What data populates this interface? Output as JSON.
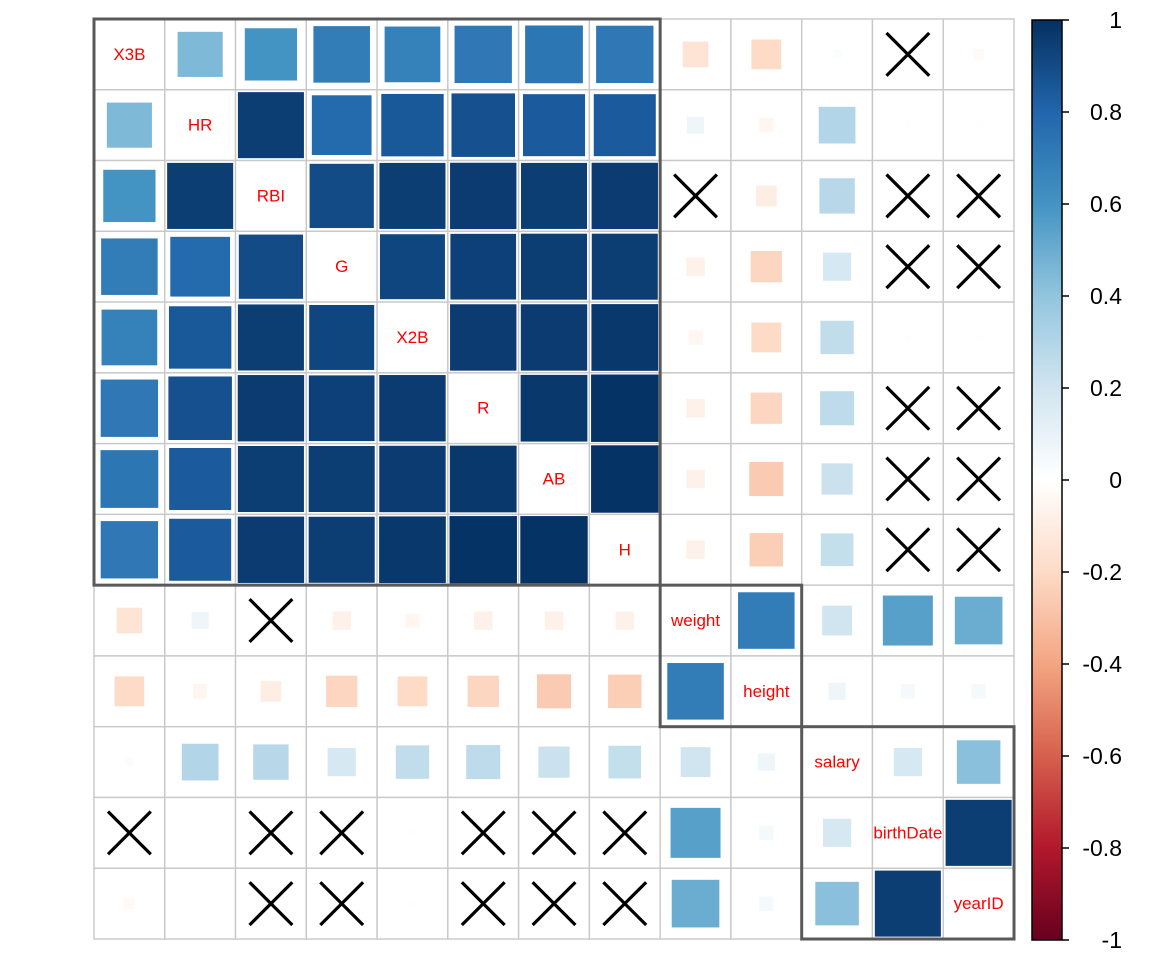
{
  "chart_data": {
    "type": "heatmap",
    "title": "",
    "variables": [
      "X3B",
      "HR",
      "RBI",
      "G",
      "X2B",
      "R",
      "AB",
      "H",
      "weight",
      "height",
      "salary",
      "birthDate",
      "yearID"
    ],
    "matrix": [
      [
        1.0,
        0.45,
        0.6,
        0.7,
        0.68,
        0.72,
        0.73,
        0.72,
        -0.15,
        -0.2,
        0.02,
        null,
        -0.03
      ],
      [
        0.45,
        1.0,
        0.95,
        0.78,
        0.85,
        0.88,
        0.84,
        0.84,
        0.07,
        -0.05,
        0.3,
        0.01,
        0.01
      ],
      [
        0.6,
        0.95,
        1.0,
        0.9,
        0.95,
        0.96,
        0.95,
        0.96,
        null,
        -0.1,
        0.28,
        null,
        null
      ],
      [
        0.7,
        0.78,
        0.9,
        1.0,
        0.92,
        0.94,
        0.95,
        0.95,
        -0.08,
        -0.22,
        0.18,
        null,
        null
      ],
      [
        0.68,
        0.85,
        0.95,
        0.92,
        1.0,
        0.96,
        0.96,
        0.97,
        -0.05,
        -0.2,
        0.25,
        0.01,
        0.01
      ],
      [
        0.72,
        0.88,
        0.96,
        0.94,
        0.96,
        1.0,
        0.97,
        0.99,
        -0.08,
        -0.22,
        0.26,
        null,
        null
      ],
      [
        0.73,
        0.84,
        0.95,
        0.95,
        0.96,
        0.97,
        1.0,
        0.99,
        -0.08,
        -0.26,
        0.22,
        null,
        null
      ],
      [
        0.72,
        0.84,
        0.96,
        0.95,
        0.97,
        0.99,
        0.99,
        1.0,
        -0.08,
        -0.25,
        0.24,
        null,
        null
      ],
      [
        -0.15,
        0.07,
        null,
        -0.08,
        -0.05,
        -0.08,
        -0.08,
        -0.08,
        1.0,
        0.7,
        0.2,
        0.55,
        0.5
      ],
      [
        -0.2,
        -0.05,
        -0.1,
        -0.22,
        -0.2,
        -0.22,
        -0.26,
        -0.25,
        0.7,
        1.0,
        0.07,
        0.05,
        0.05
      ],
      [
        0.02,
        0.3,
        0.28,
        0.18,
        0.25,
        0.26,
        0.22,
        0.24,
        0.2,
        0.07,
        1.0,
        0.18,
        0.42
      ],
      [
        null,
        0.01,
        null,
        null,
        0.01,
        null,
        null,
        null,
        0.55,
        0.05,
        0.18,
        1.0,
        0.95
      ],
      [
        -0.03,
        0.01,
        null,
        null,
        0.01,
        null,
        null,
        null,
        0.5,
        0.05,
        0.42,
        0.95,
        1.0
      ]
    ],
    "insignificant_marker": "X",
    "clusters": [
      {
        "from": "X3B",
        "to": "H"
      },
      {
        "from": "weight",
        "to": "height"
      },
      {
        "from": "salary",
        "to": "yearID"
      }
    ],
    "colorbar": {
      "range": [
        -1,
        1
      ],
      "ticks": [
        "1",
        "0.8",
        "0.6",
        "0.4",
        "0.2",
        "0",
        "-0.2",
        "-0.4",
        "-0.6",
        "-0.8",
        "-1"
      ],
      "low_color": "#67001f",
      "mid_color": "#ffffff",
      "high_color": "#053061",
      "placement": "right"
    },
    "label_color": "#ff0000",
    "grid": true
  }
}
